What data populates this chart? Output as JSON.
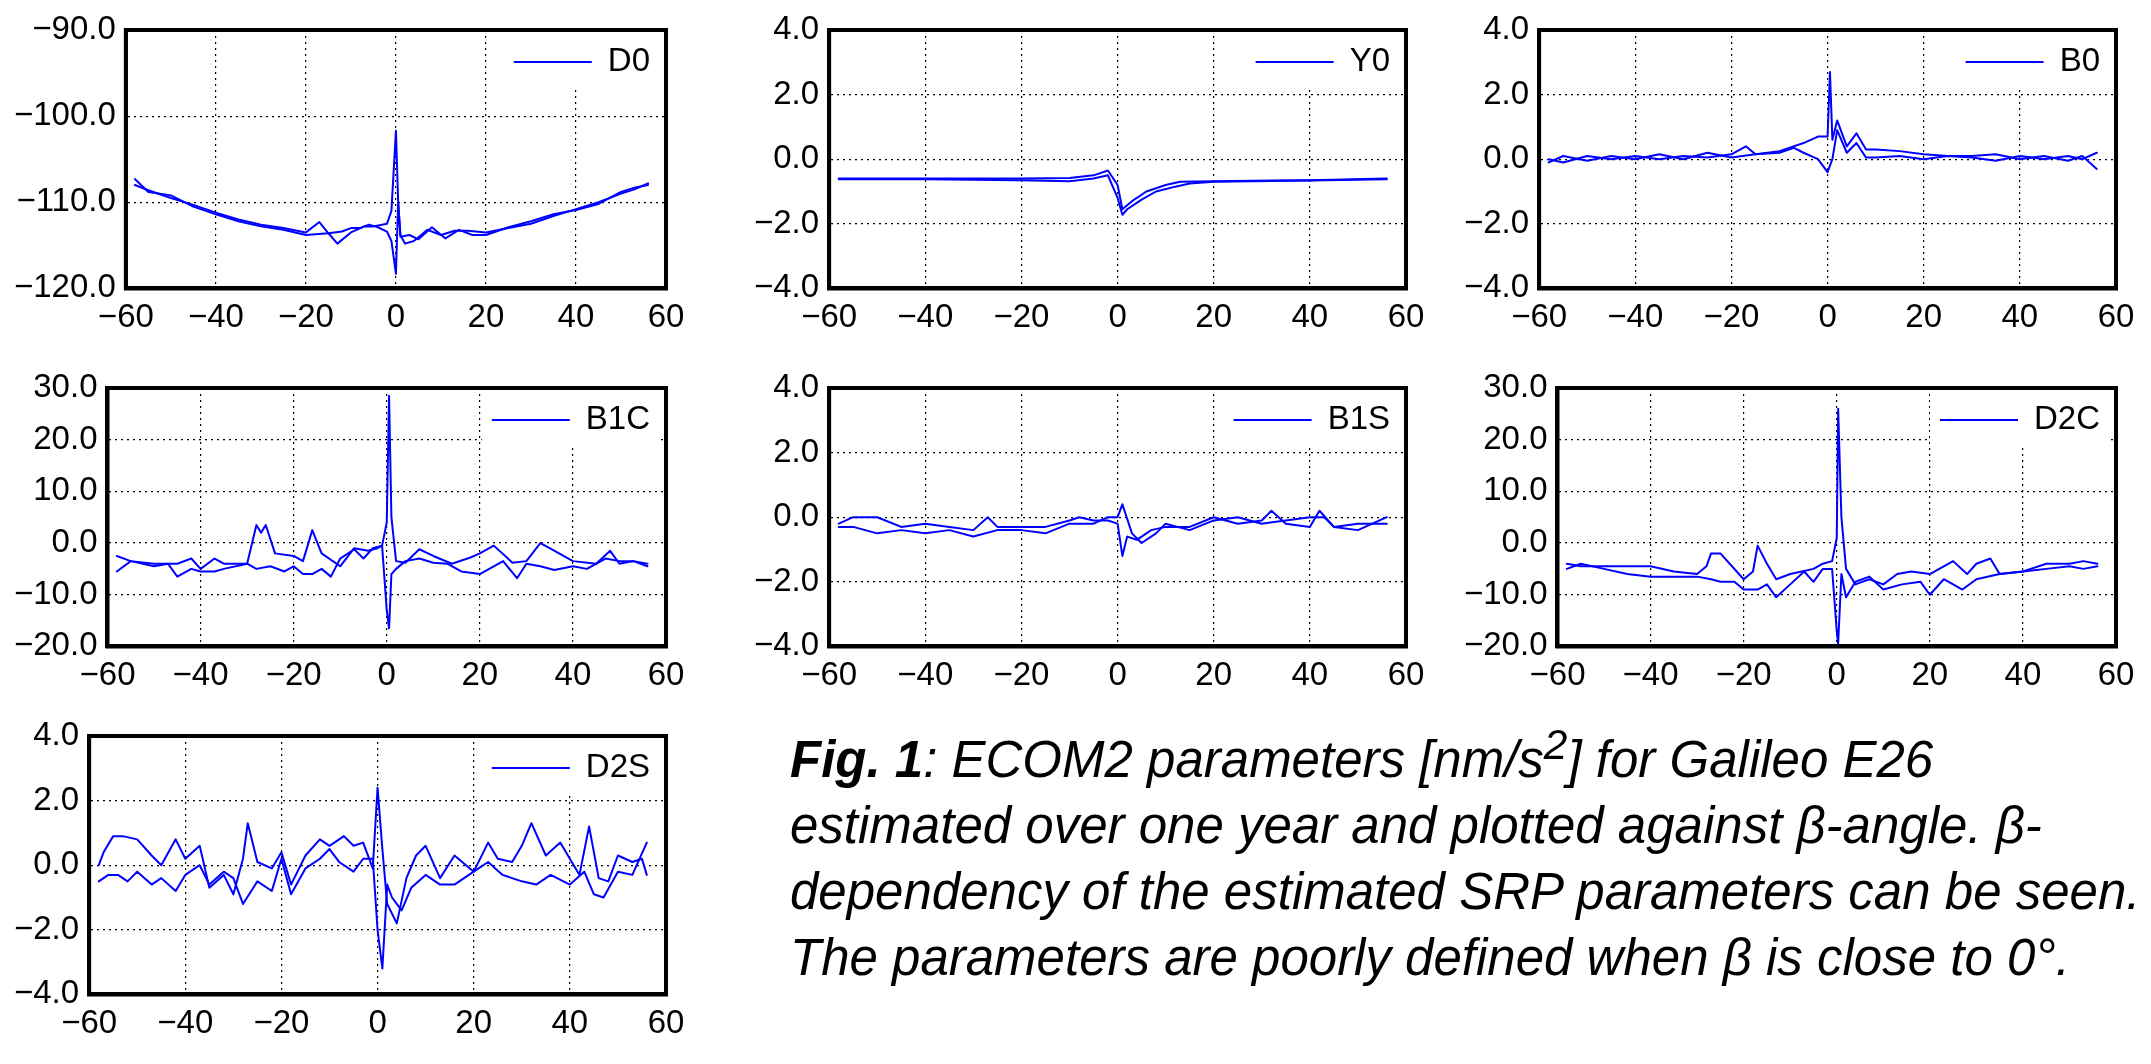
{
  "chart_data": [
    {
      "type": "line",
      "xlim": [
        -60,
        60
      ],
      "xticks": [
        {
          "value": -60,
          "label": "−60"
        },
        {
          "value": -40,
          "label": "−40"
        },
        {
          "value": -20,
          "label": "−20"
        },
        0,
        20,
        40,
        60
      ],
      "ylim": [
        -120,
        -90
      ],
      "yticks": [
        {
          "value": -120,
          "label": "−120.0"
        },
        {
          "value": -110,
          "label": "−110.0"
        },
        {
          "value": -100,
          "label": "−100.0"
        },
        {
          "value": -90,
          "label": "−90.0"
        }
      ],
      "grid": true,
      "legend": "top right",
      "marker": "none",
      "line_style": "solid",
      "series": [
        {
          "name": "D0",
          "color": "#0000ff",
          "x": [
            -58,
            -55,
            -50,
            -45,
            -40,
            -35,
            -30,
            -25,
            -20,
            -17,
            -15,
            -13,
            -10,
            -7,
            -5,
            -2,
            -1,
            0,
            0.5,
            1,
            2,
            4,
            7,
            10,
            13,
            16,
            20,
            25,
            30,
            35,
            40,
            45,
            50,
            53,
            56
          ],
          "values": [
            -108,
            -108.6,
            -109.5,
            -110.3,
            -111.2,
            -112,
            -112.6,
            -113,
            -113.5,
            -112.3,
            -113.6,
            -114.8,
            -113.5,
            -112.8,
            -112.8,
            -112.5,
            -111,
            -101.7,
            -110,
            -113.8,
            -114.8,
            -114.5,
            -113.2,
            -113.8,
            -113.3,
            -113.3,
            -113.5,
            -113,
            -112.5,
            -111.6,
            -110.8,
            -110,
            -109,
            -108.5,
            -107.8
          ]
        },
        {
          "color": "#0000ff",
          "x": [
            -58,
            -55,
            -50,
            -45,
            -40,
            -35,
            -30,
            -25,
            -20,
            -15,
            -12,
            -10,
            -8,
            -6,
            -4,
            -2,
            -1,
            0,
            0.5,
            1,
            3,
            5,
            8,
            11,
            14,
            17,
            20,
            25,
            30,
            35,
            40,
            45,
            50,
            53,
            56
          ],
          "values": [
            -107.3,
            -108.8,
            -109.2,
            -110.5,
            -111.4,
            -112.2,
            -112.8,
            -113.2,
            -113.8,
            -113.6,
            -113.4,
            -113,
            -113,
            -112.6,
            -112.9,
            -113.4,
            -114.5,
            -118.3,
            -110,
            -114,
            -113.8,
            -114.3,
            -112.9,
            -114.2,
            -113.2,
            -113.8,
            -113.8,
            -112.9,
            -112.2,
            -111.4,
            -110.9,
            -110.2,
            -108.8,
            -108.3,
            -108
          ]
        }
      ]
    },
    {
      "type": "line",
      "xlim": [
        -60,
        60
      ],
      "xticks": [
        {
          "value": -60,
          "label": "−60"
        },
        {
          "value": -40,
          "label": "−40"
        },
        {
          "value": -20,
          "label": "−20"
        },
        0,
        20,
        40,
        60
      ],
      "ylim": [
        -4,
        4
      ],
      "yticks": [
        {
          "value": -4,
          "label": "−4.0"
        },
        {
          "value": -2,
          "label": "−2.0"
        },
        {
          "value": 0,
          "label": "0.0"
        },
        {
          "value": 2,
          "label": "2.0"
        },
        {
          "value": 4,
          "label": "4.0"
        }
      ],
      "grid": true,
      "legend": "top right",
      "marker": "none",
      "line_style": "solid",
      "series": [
        {
          "name": "Y0",
          "color": "#0000ff",
          "x": [
            -58,
            -40,
            -20,
            -10,
            -5,
            -2,
            0,
            1,
            3,
            6,
            10,
            13,
            20,
            40,
            56
          ],
          "values": [
            -0.6,
            -0.6,
            -0.6,
            -0.58,
            -0.5,
            -0.35,
            -0.8,
            -1.55,
            -1.3,
            -1.0,
            -0.8,
            -0.7,
            -0.68,
            -0.65,
            -0.6
          ]
        },
        {
          "color": "#0000ff",
          "x": [
            -58,
            -40,
            -20,
            -10,
            -5,
            -2,
            0,
            1,
            2,
            5,
            8,
            12,
            15,
            20,
            40,
            56
          ],
          "values": [
            -0.62,
            -0.62,
            -0.65,
            -0.68,
            -0.6,
            -0.5,
            -1.2,
            -1.72,
            -1.55,
            -1.25,
            -1.0,
            -0.85,
            -0.75,
            -0.7,
            -0.66,
            -0.62
          ]
        }
      ]
    },
    {
      "type": "line",
      "xlim": [
        -60,
        60
      ],
      "xticks": [
        {
          "value": -60,
          "label": "−60"
        },
        {
          "value": -40,
          "label": "−40"
        },
        {
          "value": -20,
          "label": "−20"
        },
        0,
        20,
        40,
        60
      ],
      "ylim": [
        -4,
        4
      ],
      "yticks": [
        {
          "value": -4,
          "label": "−4.0"
        },
        {
          "value": -2,
          "label": "−2.0"
        },
        {
          "value": 0,
          "label": "0.0"
        },
        {
          "value": 2,
          "label": "2.0"
        },
        {
          "value": 4,
          "label": "4.0"
        }
      ],
      "grid": true,
      "legend": "top right",
      "marker": "none",
      "line_style": "solid",
      "series": [
        {
          "name": "B0",
          "color": "#0000ff",
          "x": [
            -58,
            -55,
            -50,
            -45,
            -40,
            -35,
            -30,
            -25,
            -20,
            -17,
            -15,
            -10,
            -5,
            -2,
            0,
            0.5,
            1,
            2,
            4,
            6,
            8,
            10,
            15,
            20,
            25,
            30,
            35,
            40,
            45,
            50,
            53,
            56
          ],
          "values": [
            0.0,
            -0.1,
            0.1,
            0.0,
            0.1,
            0.0,
            0.1,
            0.05,
            0.15,
            0.4,
            0.15,
            0.25,
            0.5,
            0.7,
            0.7,
            2.7,
            0.6,
            1.2,
            0.4,
            0.8,
            0.3,
            0.3,
            0.25,
            0.15,
            0.1,
            0.1,
            0.15,
            0.0,
            0.1,
            -0.05,
            0.1,
            -0.3
          ]
        },
        {
          "color": "#0000ff",
          "x": [
            -58,
            -55,
            -50,
            -45,
            -40,
            -35,
            -30,
            -25,
            -20,
            -15,
            -10,
            -7,
            -5,
            -2,
            0,
            1,
            2,
            4,
            6,
            8,
            10,
            15,
            20,
            25,
            30,
            35,
            40,
            45,
            50,
            53,
            56
          ],
          "values": [
            -0.1,
            0.1,
            -0.05,
            0.1,
            0.0,
            0.15,
            0.0,
            0.2,
            0.05,
            0.15,
            0.2,
            0.35,
            0.2,
            0.0,
            -0.4,
            0.0,
            0.9,
            0.2,
            0.5,
            0.05,
            0.05,
            0.1,
            0.0,
            0.1,
            0.05,
            -0.05,
            0.1,
            0.0,
            0.1,
            0.0,
            0.2
          ]
        }
      ]
    },
    {
      "type": "line",
      "xlim": [
        -60,
        60
      ],
      "xticks": [
        {
          "value": -60,
          "label": "−60"
        },
        {
          "value": -40,
          "label": "−40"
        },
        {
          "value": -20,
          "label": "−20"
        },
        0,
        20,
        40,
        60
      ],
      "ylim": [
        -20,
        30
      ],
      "yticks": [
        {
          "value": -20,
          "label": "−20.0"
        },
        {
          "value": -10,
          "label": "−10.0"
        },
        {
          "value": 0,
          "label": "0.0"
        },
        {
          "value": 10,
          "label": "10.0"
        },
        {
          "value": 20,
          "label": "20.0"
        },
        {
          "value": 30,
          "label": "30.0"
        }
      ],
      "grid": true,
      "legend": "top right",
      "marker": "none",
      "line_style": "solid",
      "series": [
        {
          "name": "B1C",
          "color": "#0000ff",
          "x": [
            -58,
            -55,
            -50,
            -45,
            -42,
            -40,
            -37,
            -35,
            -30,
            -28,
            -27,
            -26,
            -24,
            -20,
            -18,
            -16,
            -14,
            -10,
            -7,
            -4,
            -2,
            -1,
            0,
            0.5,
            1,
            2,
            4,
            7,
            10,
            14,
            18,
            20,
            23,
            27,
            30,
            33,
            35,
            40,
            45,
            48,
            50,
            53,
            56
          ],
          "values": [
            -2.5,
            -3.5,
            -4,
            -4,
            -3,
            -5,
            -3,
            -4,
            -4,
            3.5,
            2,
            3.5,
            -2,
            -2.5,
            -3.5,
            2.5,
            -2,
            -4.5,
            -1,
            -1.5,
            -1,
            -0.5,
            4,
            28.5,
            5,
            -3.5,
            -3.8,
            -1.2,
            -2.5,
            -4,
            -2.8,
            -2,
            -0.5,
            -3.8,
            -3.5,
            0,
            -1,
            -3.5,
            -4,
            -1.5,
            -4,
            -3.5,
            -4.5
          ]
        },
        {
          "color": "#0000ff",
          "x": [
            -58,
            -55,
            -50,
            -47,
            -45,
            -42,
            -40,
            -37,
            -35,
            -30,
            -28,
            -25,
            -22,
            -20,
            -18,
            -16,
            -14,
            -12,
            -10,
            -7,
            -5,
            -3,
            -1,
            0,
            0.5,
            1,
            2,
            4,
            7,
            10,
            13,
            16,
            20,
            25,
            28,
            30,
            33,
            36,
            40,
            43,
            47,
            50,
            53,
            56
          ],
          "values": [
            -5.5,
            -3.5,
            -4.5,
            -4,
            -6.5,
            -5,
            -5.5,
            -5.5,
            -5,
            -4,
            -5,
            -4.5,
            -5.5,
            -4.5,
            -6,
            -6,
            -5,
            -6.5,
            -3,
            -1.2,
            -3,
            -1,
            -0.5,
            -13,
            -16.5,
            -6,
            -5,
            -3.5,
            -3,
            -3.8,
            -4,
            -5.5,
            -6,
            -3.5,
            -6.8,
            -4,
            -4.5,
            -5.2,
            -4.5,
            -5,
            -3,
            -3.5,
            -3.5,
            -4
          ]
        }
      ]
    },
    {
      "type": "line",
      "xlim": [
        -60,
        60
      ],
      "xticks": [
        {
          "value": -60,
          "label": "−60"
        },
        {
          "value": -40,
          "label": "−40"
        },
        {
          "value": -20,
          "label": "−20"
        },
        0,
        20,
        40,
        60
      ],
      "ylim": [
        -4,
        4
      ],
      "yticks": [
        {
          "value": -4,
          "label": "−4.0"
        },
        {
          "value": -2,
          "label": "−2.0"
        },
        {
          "value": 0,
          "label": "0.0"
        },
        {
          "value": 2,
          "label": "2.0"
        },
        {
          "value": 4,
          "label": "4.0"
        }
      ],
      "grid": true,
      "legend": "top right",
      "marker": "none",
      "line_style": "solid",
      "series": [
        {
          "name": "B1S",
          "color": "#0000ff",
          "x": [
            -58,
            -55,
            -52,
            -50,
            -45,
            -40,
            -35,
            -30,
            -27,
            -25,
            -20,
            -15,
            -10,
            -8,
            -5,
            -2,
            0,
            1,
            2,
            4,
            7,
            10,
            15,
            20,
            25,
            30,
            32,
            35,
            40,
            42,
            45,
            50,
            53,
            56
          ],
          "values": [
            -0.2,
            0.0,
            0.0,
            0.0,
            -0.3,
            -0.2,
            -0.3,
            -0.4,
            0.0,
            -0.3,
            -0.3,
            -0.3,
            -0.1,
            0.0,
            -0.1,
            -0.1,
            -0.2,
            -1.2,
            -0.6,
            -0.7,
            -0.4,
            -0.3,
            -0.3,
            0.0,
            -0.2,
            -0.1,
            0.2,
            -0.2,
            -0.3,
            0.2,
            -0.3,
            -0.2,
            -0.2,
            -0.2
          ]
        },
        {
          "color": "#0000ff",
          "x": [
            -58,
            -55,
            -50,
            -45,
            -40,
            -35,
            -30,
            -25,
            -20,
            -15,
            -10,
            -5,
            -2,
            0,
            1,
            3,
            5,
            8,
            10,
            15,
            20,
            25,
            30,
            35,
            40,
            43,
            45,
            50,
            53,
            56
          ],
          "values": [
            -0.3,
            -0.3,
            -0.5,
            -0.4,
            -0.5,
            -0.4,
            -0.6,
            -0.4,
            -0.4,
            -0.5,
            -0.2,
            -0.2,
            0.0,
            0.0,
            0.4,
            -0.5,
            -0.8,
            -0.5,
            -0.2,
            -0.4,
            -0.1,
            0.0,
            -0.2,
            -0.1,
            0.0,
            0.0,
            -0.3,
            -0.4,
            -0.2,
            0.0
          ]
        }
      ]
    },
    {
      "type": "line",
      "xlim": [
        -60,
        60
      ],
      "xticks": [
        {
          "value": -60,
          "label": "−60"
        },
        {
          "value": -40,
          "label": "−40"
        },
        {
          "value": -20,
          "label": "−20"
        },
        0,
        20,
        40,
        60
      ],
      "ylim": [
        -20,
        30
      ],
      "yticks": [
        {
          "value": -20,
          "label": "−20.0"
        },
        {
          "value": -10,
          "label": "−10.0"
        },
        {
          "value": 0,
          "label": "0.0"
        },
        {
          "value": 10,
          "label": "10.0"
        },
        {
          "value": 20,
          "label": "20.0"
        },
        {
          "value": 30,
          "label": "30.0"
        }
      ],
      "grid": true,
      "legend": "top right",
      "marker": "none",
      "line_style": "solid",
      "series": [
        {
          "name": "D2C",
          "color": "#0000ff",
          "x": [
            -58,
            -55,
            -50,
            -45,
            -40,
            -35,
            -30,
            -28,
            -27,
            -25,
            -20,
            -18,
            -17,
            -15,
            -13,
            -10,
            -5,
            -3,
            -1,
            0,
            0.3,
            1,
            2,
            4,
            7,
            10,
            13,
            16,
            20,
            25,
            28,
            30,
            33,
            35,
            40,
            45,
            50,
            53,
            56
          ],
          "values": [
            -4,
            -4.5,
            -4.5,
            -4.5,
            -4.5,
            -5.5,
            -6,
            -4.5,
            -2,
            -2,
            -7,
            -5.5,
            -0.5,
            -4,
            -7,
            -6,
            -5,
            -4,
            -3.5,
            1,
            26,
            5,
            -5,
            -8,
            -7,
            -8,
            -6,
            -5.5,
            -6,
            -3.5,
            -6,
            -4,
            -3,
            -6,
            -5.5,
            -4,
            -4,
            -3.5,
            -4
          ]
        },
        {
          "color": "#0000ff",
          "x": [
            -58,
            -55,
            -50,
            -45,
            -40,
            -35,
            -30,
            -27,
            -25,
            -22,
            -20,
            -17,
            -15,
            -13,
            -10,
            -7,
            -5,
            -3,
            -1,
            0,
            0.3,
            1,
            2,
            4,
            7,
            10,
            14,
            18,
            20,
            23,
            27,
            30,
            35,
            40,
            45,
            50,
            53,
            56
          ],
          "values": [
            -5,
            -4,
            -5,
            -6,
            -6.5,
            -6.5,
            -6.5,
            -7,
            -7.5,
            -7.5,
            -9,
            -9,
            -8,
            -10.5,
            -8,
            -5.5,
            -7.5,
            -5,
            -5,
            -17,
            -19.5,
            -6,
            -10.5,
            -7.5,
            -6.5,
            -9,
            -8,
            -7.5,
            -10,
            -7,
            -9,
            -7,
            -6,
            -5.5,
            -5,
            -4.5,
            -5,
            -4.5
          ]
        }
      ]
    },
    {
      "type": "line",
      "xlim": [
        -60,
        60
      ],
      "xticks": [
        {
          "value": -60,
          "label": "−60"
        },
        {
          "value": -40,
          "label": "−40"
        },
        {
          "value": -20,
          "label": "−20"
        },
        0,
        20,
        40,
        60
      ],
      "ylim": [
        -4,
        4
      ],
      "yticks": [
        {
          "value": -4,
          "label": "−4.0"
        },
        {
          "value": -2,
          "label": "−2.0"
        },
        {
          "value": 0,
          "label": "0.0"
        },
        {
          "value": 2,
          "label": "2.0"
        },
        {
          "value": 4,
          "label": "4.0"
        }
      ],
      "grid": true,
      "legend": "top right",
      "marker": "none",
      "line_style": "solid",
      "series": [
        {
          "name": "D2S",
          "color": "#0000ff",
          "x": [
            -58,
            -57,
            -55,
            -53,
            -50,
            -47,
            -45,
            -42,
            -40,
            -37,
            -35,
            -32,
            -30,
            -28,
            -27,
            -25,
            -22,
            -20,
            -18,
            -15,
            -12,
            -10,
            -7,
            -5,
            -3,
            -1,
            0,
            1,
            2,
            4,
            6,
            8,
            10,
            13,
            16,
            20,
            23,
            25,
            28,
            30,
            32,
            35,
            38,
            40,
            42,
            44,
            46,
            48,
            50,
            53,
            55,
            56
          ],
          "values": [
            0,
            0.4,
            0.9,
            0.9,
            0.8,
            0.3,
            0,
            0.8,
            0.2,
            0.6,
            -0.7,
            -0.3,
            -0.9,
            0.2,
            1.3,
            0.1,
            -0.1,
            0.4,
            -0.6,
            0.3,
            0.8,
            0.6,
            0.9,
            0.6,
            0.7,
            -0.1,
            2.4,
            0.5,
            -1.2,
            -1.8,
            -0.4,
            0.3,
            0.6,
            -0.4,
            0.3,
            -0.2,
            0.7,
            0.2,
            0.1,
            0.6,
            1.3,
            0.3,
            0.7,
            0.2,
            -0.3,
            1.2,
            -0.4,
            -0.5,
            0.3,
            0.1,
            0.2,
            -0.3
          ]
        },
        {
          "color": "#0000ff",
          "x": [
            -58,
            -56,
            -54,
            -52,
            -50,
            -47,
            -45,
            -42,
            -40,
            -37,
            -35,
            -32,
            -30,
            -28,
            -25,
            -22,
            -20,
            -18,
            -15,
            -12,
            -10,
            -8,
            -5,
            -3,
            -1,
            0,
            1,
            2,
            3,
            5,
            7,
            10,
            13,
            16,
            20,
            23,
            26,
            30,
            33,
            36,
            40,
            43,
            45,
            47,
            50,
            53,
            56
          ],
          "values": [
            -0.5,
            -0.3,
            -0.3,
            -0.5,
            -0.2,
            -0.6,
            -0.4,
            -0.8,
            -0.3,
            0.0,
            -0.6,
            -0.2,
            -0.4,
            -1.2,
            -0.5,
            -0.8,
            0.2,
            -0.9,
            -0.1,
            0.2,
            0.5,
            0.1,
            -0.2,
            0.2,
            0.2,
            -2.0,
            -3.2,
            -0.6,
            -1.0,
            -1.4,
            -0.7,
            -0.3,
            -0.6,
            -0.6,
            -0.2,
            0.1,
            -0.3,
            -0.5,
            -0.6,
            -0.3,
            -0.6,
            -0.2,
            -0.9,
            -1.0,
            -0.2,
            -0.3,
            0.7
          ]
        }
      ]
    },
    {
      "type": "other",
      "annotations": [
        "Fig. 1",
        ": ECOM2 parameters [nm/s$^{2}$] for Galileo E26 estimated over one year and plotted against β-angle. β-dependency of the estimated SRP parameters can be seen. The parameters are poorly defined when β is close to 0°."
      ]
    }
  ]
}
